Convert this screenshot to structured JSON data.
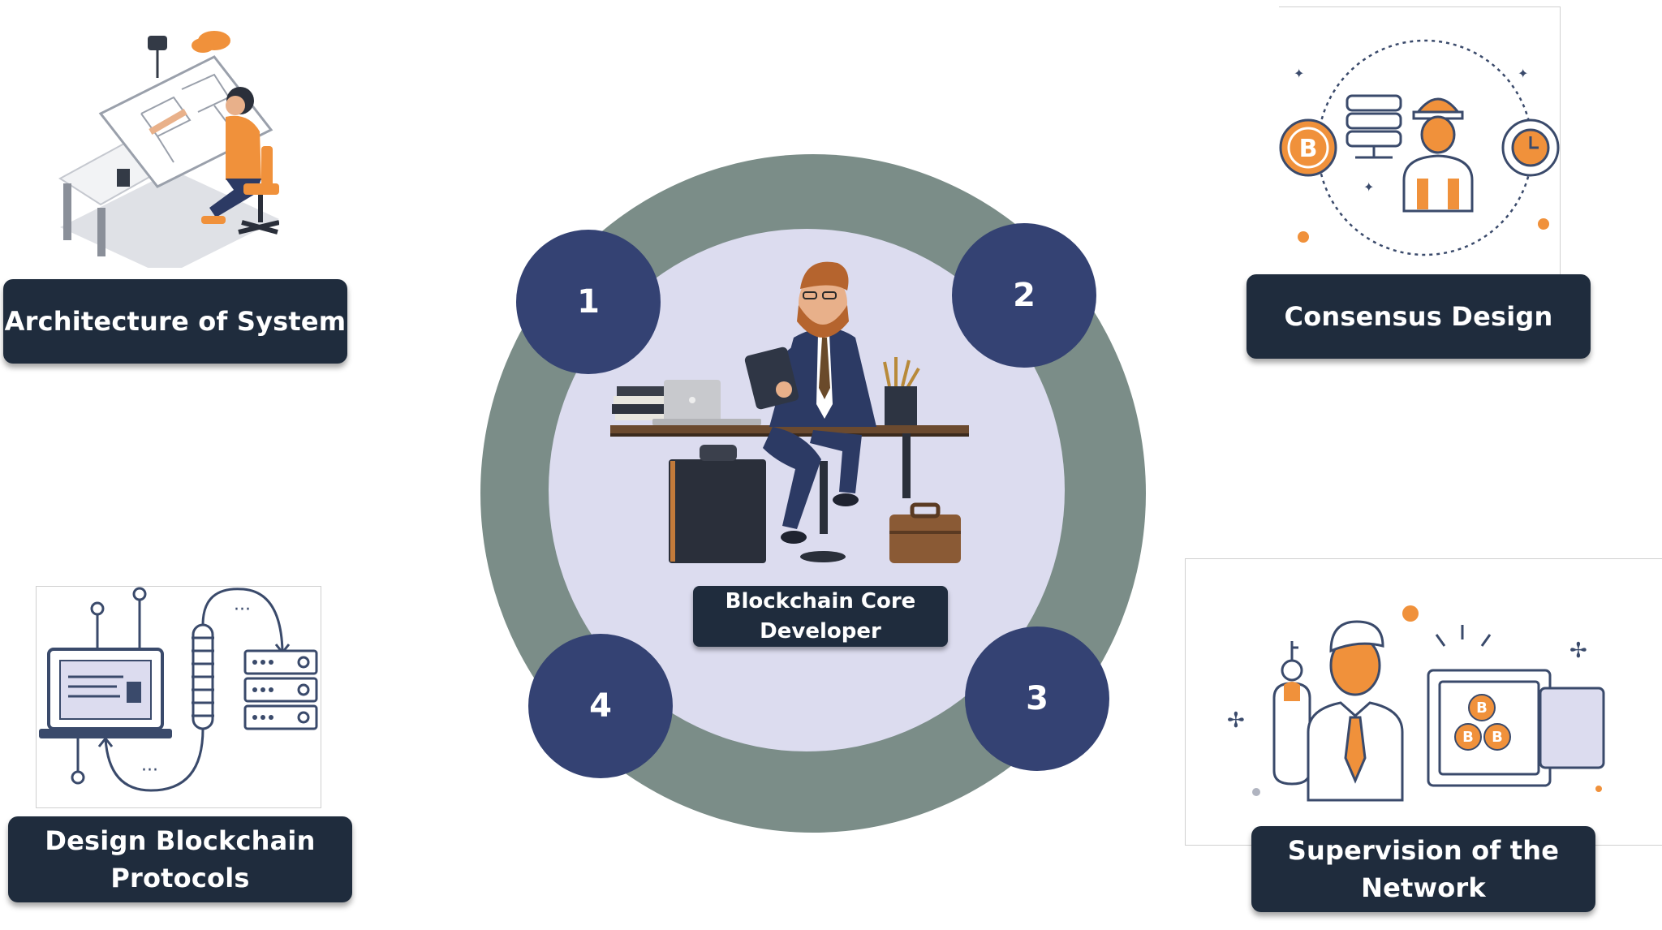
{
  "center": {
    "title_line1": "Blockchain Core",
    "title_line2": "Developer"
  },
  "steps": [
    {
      "number": "1",
      "label": "Architecture of System"
    },
    {
      "number": "2",
      "label": "Consensus Design"
    },
    {
      "number": "3",
      "label_line1": "Supervision of the",
      "label_line2": "Network"
    },
    {
      "number": "4",
      "label_line1": "Design Blockchain",
      "label_line2": "Protocols"
    }
  ],
  "colors": {
    "ring": "#7a8c87",
    "inner": "#dcdcef",
    "number_circle": "#344273",
    "label_bg": "#1f2c3d",
    "accent_orange": "#f0913b",
    "line_navy": "#3a4a6b"
  },
  "icons": [
    "architect-at-drafting-table-illustration",
    "consensus-design-icon",
    "network-supervision-icon",
    "blockchain-protocol-icon",
    "developer-at-desk-illustration"
  ]
}
